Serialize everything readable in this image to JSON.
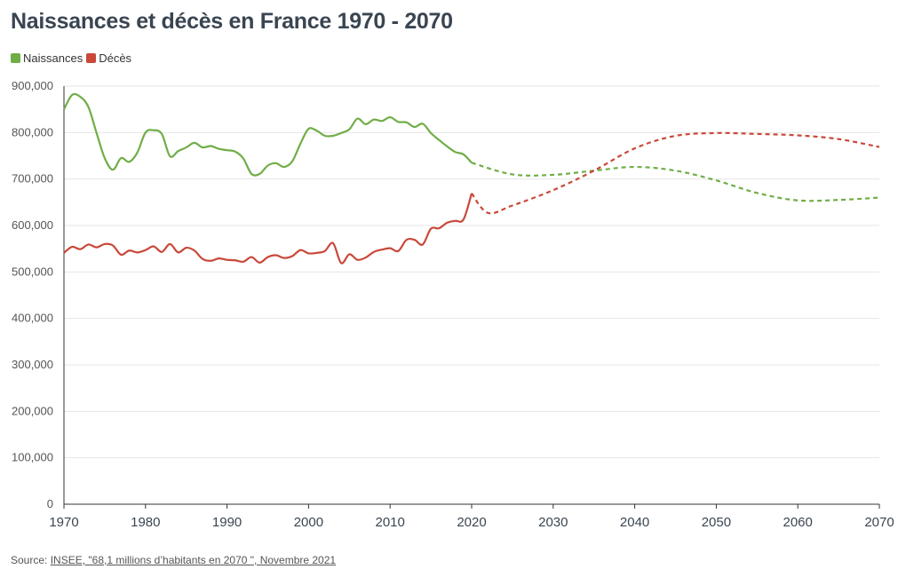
{
  "title": "Naissances et décès en France 1970 - 2070",
  "legend": [
    {
      "label": "Naissances",
      "color": "#70ad47"
    },
    {
      "label": "Décès",
      "color": "#c9483a"
    }
  ],
  "source": {
    "prefix": "Source: ",
    "link": "INSEE, \"68,1 millions d’habitants en 2070 \", Novembre 2021"
  },
  "chart_data": {
    "type": "line",
    "title": "Naissances et décès en France 1970 - 2070",
    "xlabel": "",
    "ylabel": "",
    "xlim": [
      1970,
      2070
    ],
    "ylim": [
      0,
      900000
    ],
    "x_ticks": [
      1970,
      1980,
      1990,
      2000,
      2010,
      2020,
      2030,
      2040,
      2050,
      2060,
      2070
    ],
    "y_ticks": [
      0,
      100000,
      200000,
      300000,
      400000,
      500000,
      600000,
      700000,
      800000,
      900000
    ],
    "y_tick_labels": [
      "0",
      "100,000",
      "200,000",
      "300,000",
      "400,000",
      "500,000",
      "600,000",
      "700,000",
      "800,000",
      "900,000"
    ],
    "grid": "horizontal",
    "legend_position": "top-left",
    "series": [
      {
        "name": "Naissances",
        "color": "#70ad47",
        "observed": {
          "x": [
            1970,
            1971,
            1972,
            1973,
            1974,
            1975,
            1976,
            1977,
            1978,
            1979,
            1980,
            1981,
            1982,
            1983,
            1984,
            1985,
            1986,
            1987,
            1988,
            1989,
            1990,
            1991,
            1992,
            1993,
            1994,
            1995,
            1996,
            1997,
            1998,
            1999,
            2000,
            2001,
            2002,
            2003,
            2004,
            2005,
            2006,
            2007,
            2008,
            2009,
            2010,
            2011,
            2012,
            2013,
            2014,
            2015,
            2016,
            2017,
            2018,
            2019,
            2020
          ],
          "y": [
            850000,
            881000,
            877000,
            855000,
            799000,
            745000,
            720000,
            745000,
            737000,
            757000,
            800000,
            805000,
            797000,
            749000,
            760000,
            768000,
            778000,
            768000,
            771000,
            765000,
            762000,
            759000,
            744000,
            711000,
            711000,
            729000,
            734000,
            726000,
            738000,
            776000,
            808000,
            804000,
            793000,
            793000,
            799000,
            807000,
            830000,
            818000,
            828000,
            825000,
            833000,
            823000,
            822000,
            812000,
            819000,
            799000,
            784000,
            770000,
            758000,
            753000,
            735000
          ]
        },
        "projection": {
          "x": [
            2020,
            2025,
            2030,
            2035,
            2040,
            2045,
            2050,
            2055,
            2060,
            2065,
            2070
          ],
          "y": [
            735000,
            710000,
            709000,
            718000,
            726000,
            718000,
            697000,
            670000,
            654000,
            655000,
            660000
          ]
        }
      },
      {
        "name": "Décès",
        "color": "#c9483a",
        "observed": {
          "x": [
            1970,
            1971,
            1972,
            1973,
            1974,
            1975,
            1976,
            1977,
            1978,
            1979,
            1980,
            1981,
            1982,
            1983,
            1984,
            1985,
            1986,
            1987,
            1988,
            1989,
            1990,
            1991,
            1992,
            1993,
            1994,
            1995,
            1996,
            1997,
            1998,
            1999,
            2000,
            2001,
            2002,
            2003,
            2004,
            2005,
            2006,
            2007,
            2008,
            2009,
            2010,
            2011,
            2012,
            2013,
            2014,
            2015,
            2016,
            2017,
            2018,
            2019,
            2020
          ],
          "y": [
            541000,
            554000,
            549000,
            559000,
            553000,
            560000,
            557000,
            537000,
            546000,
            542000,
            547000,
            555000,
            543000,
            560000,
            542000,
            552000,
            546000,
            528000,
            524000,
            529000,
            526000,
            525000,
            522000,
            532000,
            520000,
            532000,
            536000,
            530000,
            534000,
            547000,
            540000,
            541000,
            545000,
            562000,
            519000,
            538000,
            526000,
            531000,
            543000,
            548000,
            551000,
            545000,
            569000,
            569000,
            559000,
            593000,
            594000,
            606000,
            610000,
            613000,
            669000
          ]
        },
        "projection": {
          "x": [
            2020,
            2022,
            2025,
            2030,
            2035,
            2040,
            2045,
            2050,
            2055,
            2060,
            2065,
            2070
          ],
          "y": [
            669000,
            627000,
            643000,
            676000,
            718000,
            766000,
            793000,
            799000,
            797000,
            794000,
            786000,
            769000
          ]
        }
      }
    ]
  }
}
